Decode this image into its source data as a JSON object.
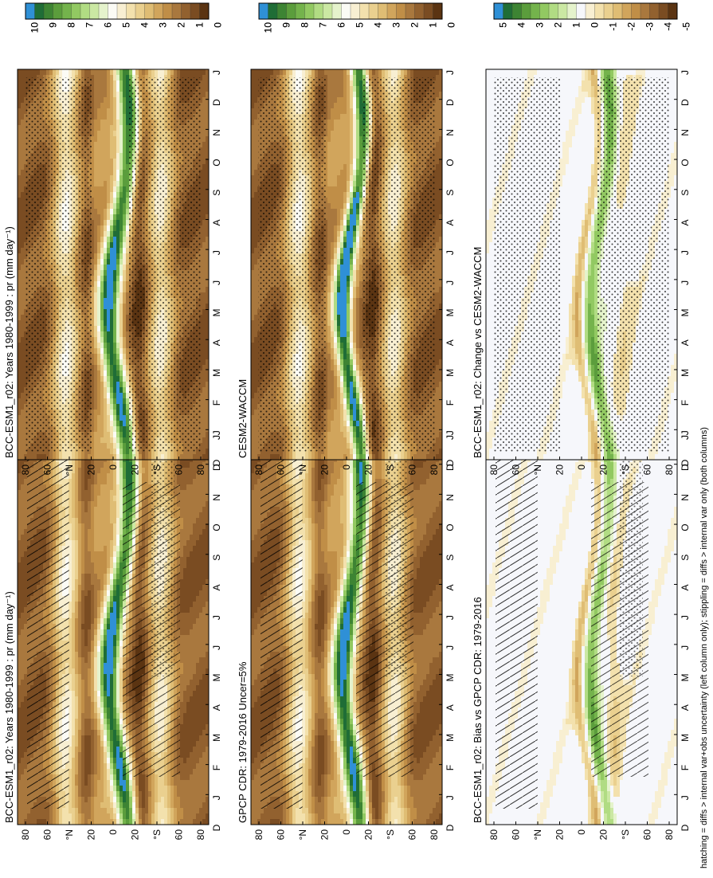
{
  "footnote": "hatching = diffs > internal var+obs uncertainty (left column only); stippling = diffs > internal var only (both columns)",
  "colors": {
    "levels10": [
      "#5b3412",
      "#7a4c22",
      "#92612f",
      "#a9783e",
      "#c08e47",
      "#d1a55c",
      "#dfbd74",
      "#ead08f",
      "#f3e1ad",
      "#f8efd2",
      "#fbfbf5",
      "#e5f3cc",
      "#cbe8a3",
      "#b1dc83",
      "#92c962",
      "#74b34c",
      "#5b9d3c",
      "#3d8433",
      "#1f6d36",
      "#2f90d6"
    ],
    "levels5": [
      "#5b3412",
      "#7a4c22",
      "#92612f",
      "#a9783e",
      "#c08e47",
      "#d1a55c",
      "#dfbd74",
      "#ead08f",
      "#f3e1ad",
      "#f8efd2",
      "#f6f7fb",
      "#e5f3cc",
      "#cbe8a3",
      "#b1dc83",
      "#92c962",
      "#74b34c",
      "#5b9d3c",
      "#3d8433",
      "#1f6d36",
      "#2f90d6"
    ]
  },
  "chart_data": [
    {
      "type": "heatmap",
      "panel": "left-top",
      "title": "BCC-ESM1_r02: Years 1980-1999 : pr (mm day⁻¹)",
      "x": [
        "D",
        "J",
        "F",
        "M",
        "A",
        "M",
        "J",
        "J",
        "A",
        "S",
        "O",
        "N",
        "D",
        "J"
      ],
      "y_ticks": [
        "80",
        "60",
        "°N",
        "20",
        "0",
        "20",
        "°S",
        "60",
        "80"
      ],
      "colorbar": [
        "10",
        "9",
        "8",
        "7",
        "6",
        "5",
        "4",
        "3",
        "2",
        "1",
        "0"
      ],
      "scale": 10
    },
    {
      "type": "heatmap",
      "panel": "left-middle",
      "title": "GPCP CDR: 1979-2016 Uncer=5%",
      "x": [
        "D",
        "J",
        "F",
        "M",
        "A",
        "M",
        "J",
        "J",
        "A",
        "S",
        "O",
        "N",
        "D",
        "J"
      ],
      "y_ticks": [
        "80",
        "60",
        "°N",
        "20",
        "0",
        "20",
        "°S",
        "60",
        "80"
      ],
      "colorbar": [
        "10",
        "9",
        "8",
        "7",
        "6",
        "5",
        "4",
        "3",
        "2",
        "1",
        "0"
      ],
      "scale": 10
    },
    {
      "type": "heatmap",
      "panel": "left-bottom",
      "title": "BCC-ESM1_r02: Bias vs GPCP CDR: 1979-2016",
      "x": [
        "D",
        "J",
        "F",
        "M",
        "A",
        "M",
        "J",
        "J",
        "A",
        "S",
        "O",
        "N",
        "D",
        "J"
      ],
      "y_ticks": [
        "80",
        "60",
        "°N",
        "20",
        "0",
        "20",
        "°S",
        "60",
        "80"
      ],
      "colorbar": [
        "5",
        "4",
        "3",
        "2",
        "1",
        "0",
        "-1",
        "-2",
        "-3",
        "-4",
        "-5"
      ],
      "scale": 5
    },
    {
      "type": "heatmap",
      "panel": "right-top",
      "title": "BCC-ESM1_r02: Years 1980-1999 : pr (mm day⁻¹)",
      "x": [
        "D",
        "J",
        "F",
        "M",
        "A",
        "M",
        "J",
        "J",
        "A",
        "S",
        "O",
        "N",
        "D",
        "J"
      ],
      "y_ticks": [
        "80",
        "60",
        "°N",
        "20",
        "0",
        "20",
        "°S",
        "60",
        "80"
      ],
      "colorbar": [
        "10",
        "9",
        "8",
        "7",
        "6",
        "5",
        "4",
        "3",
        "2",
        "1",
        "0"
      ],
      "scale": 10
    },
    {
      "type": "heatmap",
      "panel": "right-middle",
      "title": "CESM2-WACCM",
      "x": [
        "D",
        "J",
        "F",
        "M",
        "A",
        "M",
        "J",
        "J",
        "A",
        "S",
        "O",
        "N",
        "D",
        "J"
      ],
      "y_ticks": [
        "80",
        "60",
        "°N",
        "20",
        "0",
        "20",
        "°S",
        "60",
        "80"
      ],
      "colorbar": [
        "10",
        "9",
        "8",
        "7",
        "6",
        "5",
        "4",
        "3",
        "2",
        "1",
        "0"
      ],
      "scale": 10
    },
    {
      "type": "heatmap",
      "panel": "right-bottom",
      "title": "BCC-ESM1_r02: Change vs CESM2-WACCM",
      "x": [
        "D",
        "J",
        "F",
        "M",
        "A",
        "M",
        "J",
        "J",
        "A",
        "S",
        "O",
        "N",
        "D",
        "J"
      ],
      "y_ticks": [
        "80",
        "60",
        "°N",
        "20",
        "0",
        "20",
        "°S",
        "60",
        "80"
      ],
      "colorbar": [
        "5",
        "4",
        "3",
        "2",
        "1",
        "0",
        "-1",
        "-2",
        "-3",
        "-4",
        "-5"
      ],
      "scale": 5
    }
  ]
}
